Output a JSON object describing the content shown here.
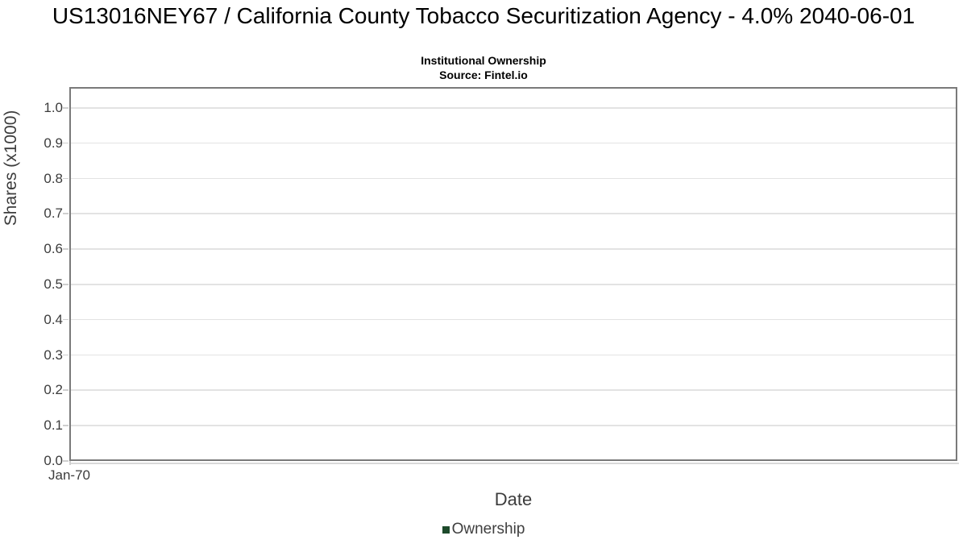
{
  "header": {
    "title": "US13016NEY67 / California County Tobacco Securitization Agency - 4.0% 2040-06-01",
    "subtitle": "Institutional Ownership",
    "source": "Source: Fintel.io"
  },
  "chart_data": {
    "type": "line",
    "title": "US13016NEY67 / California County Tobacco Securitization Agency - 4.0% 2040-06-01",
    "subtitle": "Institutional Ownership",
    "source": "Source: Fintel.io",
    "xlabel": "Date",
    "ylabel": "Shares (x1000)",
    "ylim": [
      0.0,
      1.0
    ],
    "yticks": [
      0.0,
      0.1,
      0.2,
      0.3,
      0.4,
      0.5,
      0.6,
      0.7,
      0.8,
      0.9,
      1.0
    ],
    "ytick_labels": [
      "0.0",
      "0.1",
      "0.2",
      "0.3",
      "0.4",
      "0.5",
      "0.6",
      "0.7",
      "0.8",
      "0.9",
      "1.0"
    ],
    "xtick_labels": [
      "Jan-70"
    ],
    "grid": true,
    "series": [
      {
        "name": "Ownership",
        "x": [],
        "values": []
      }
    ],
    "legend": {
      "position": "bottom",
      "entries": [
        {
          "label": "Ownership",
          "color": "#1d4a2b"
        }
      ]
    }
  },
  "colors": {
    "background": "#ffffff",
    "plot_border": "#7a7a7a",
    "gridline": "#e3e3e3",
    "tick": "#cfcfcf",
    "axis_text": "#3c3c3c",
    "title_text": "#000000",
    "legend_marker": "#1d4a2b"
  }
}
